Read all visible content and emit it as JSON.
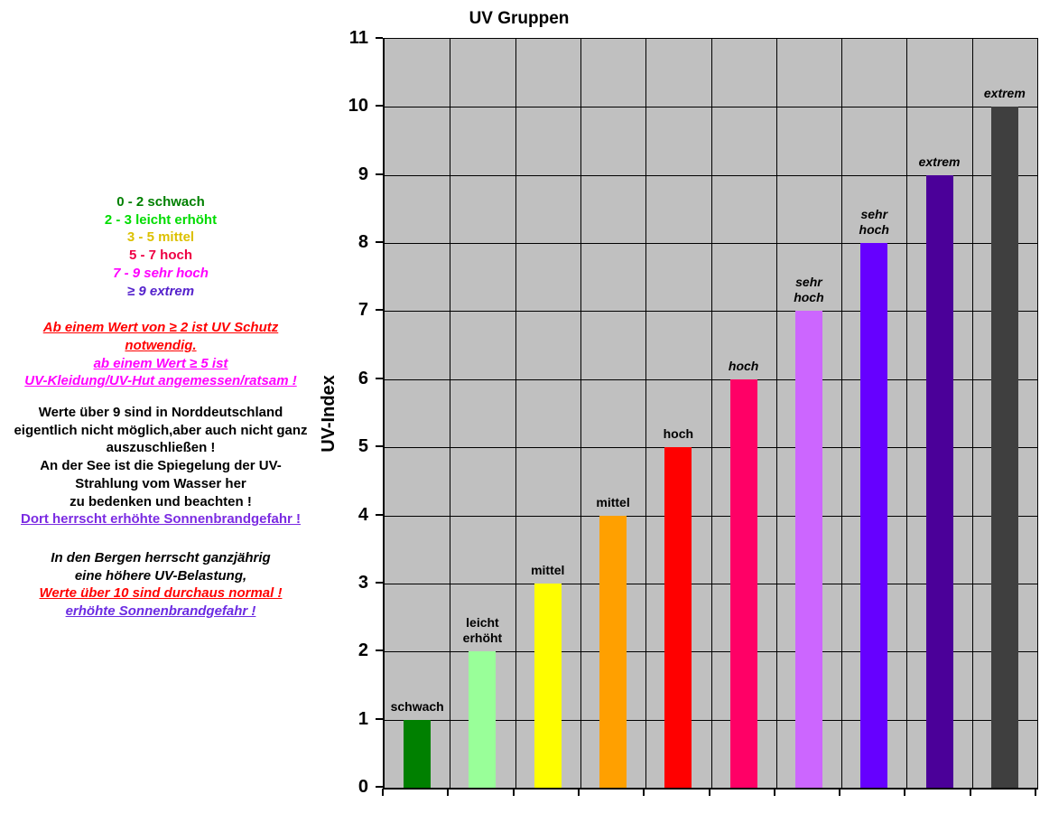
{
  "left_panel": {
    "legend": [
      {
        "text": "0 - 2 schwach",
        "color": "#008000",
        "italic": false,
        "underline": false
      },
      {
        "text": "2 - 3 leicht erhöht",
        "color": "#00DC00",
        "italic": false,
        "underline": false
      },
      {
        "text": "3 - 5 mittel",
        "color": "#DCC000",
        "italic": false,
        "underline": false
      },
      {
        "text": "5 - 7 hoch",
        "color": "#EE0044",
        "italic": false,
        "underline": false
      },
      {
        "text": "7 - 9 sehr hoch",
        "color": "#FF00FF",
        "italic": true,
        "underline": false
      },
      {
        "text": "≥ 9 extrem",
        "color": "#5522CC",
        "italic": true,
        "underline": false
      }
    ],
    "protection_notes": [
      {
        "text": "Ab einem Wert von ≥ 2 ist UV Schutz",
        "color": "#FF0000",
        "italic": true,
        "underline": true
      },
      {
        "text": "notwendig.",
        "color": "#FF0000",
        "italic": true,
        "underline": true
      },
      {
        "text": "ab einem Wert  ≥ 5 ist",
        "color": "#FF00FF",
        "italic": true,
        "underline": true
      },
      {
        "text": "UV-Kleidung/UV-Hut angemessen/ratsam !",
        "color": "#FF00FF",
        "italic": true,
        "underline": true
      }
    ],
    "north_notes": [
      {
        "text": "Werte über 9 sind in Norddeutschland",
        "color": "#000000",
        "italic": false,
        "underline": false
      },
      {
        "text": "eigentlich nicht möglich,aber auch nicht ganz",
        "color": "#000000",
        "italic": false,
        "underline": false
      },
      {
        "text": "auszuschließen !",
        "color": "#000000",
        "italic": false,
        "underline": false
      },
      {
        "text": "An der See ist die Spiegelung der UV-",
        "color": "#000000",
        "italic": false,
        "underline": false
      },
      {
        "text": "Strahlung vom Wasser her",
        "color": "#000000",
        "italic": false,
        "underline": false
      },
      {
        "text": "zu bedenken und beachten !",
        "color": "#000000",
        "italic": false,
        "underline": false
      },
      {
        "text": "Dort herrscht erhöhte Sonnenbrandgefahr !",
        "color": "#7B2BE2",
        "italic": false,
        "underline": true
      }
    ],
    "mountain_notes": [
      {
        "text": "In den Bergen herrscht ganzjährig",
        "color": "#000000",
        "italic": true,
        "underline": false
      },
      {
        "text": "eine höhere UV-Belastung,",
        "color": "#000000",
        "italic": true,
        "underline": false
      },
      {
        "text": "Werte über 10 sind durchaus normal !",
        "color": "#FF0000",
        "italic": true,
        "underline": true
      },
      {
        "text": "erhöhte Sonnenbrandgefahr !",
        "color": "#6B2BE2",
        "italic": true,
        "underline": true
      }
    ]
  },
  "chart_data": {
    "type": "bar",
    "title": "UV Gruppen",
    "ylabel": "UV-Index",
    "ylim": [
      0,
      11
    ],
    "ytick_step": 1,
    "yticks": [
      0,
      1,
      2,
      3,
      4,
      5,
      6,
      7,
      8,
      9,
      10,
      11
    ],
    "grid": true,
    "plot_background": "#C0C0C0",
    "gridline_color": "#000000",
    "values": [
      1,
      2,
      3,
      4,
      5,
      6,
      7,
      8,
      9,
      10
    ],
    "bar_colors": [
      "#008000",
      "#99FF99",
      "#FFFF00",
      "#FFA000",
      "#FF0000",
      "#FF0066",
      "#CC66FF",
      "#6600FF",
      "#4B0099",
      "#3F3F3F"
    ],
    "bar_labels": [
      {
        "lines": [
          "schwach"
        ],
        "italic": false
      },
      {
        "lines": [
          "leicht",
          "erhöht"
        ],
        "italic": false
      },
      {
        "lines": [
          "mittel"
        ],
        "italic": false
      },
      {
        "lines": [
          "mittel"
        ],
        "italic": false
      },
      {
        "lines": [
          "hoch"
        ],
        "italic": false
      },
      {
        "lines": [
          "hoch"
        ],
        "italic": true
      },
      {
        "lines": [
          "sehr",
          "hoch"
        ],
        "italic": true
      },
      {
        "lines": [
          "sehr",
          "hoch"
        ],
        "italic": true
      },
      {
        "lines": [
          "extrem"
        ],
        "italic": true
      },
      {
        "lines": [
          "extrem"
        ],
        "italic": true
      }
    ]
  }
}
